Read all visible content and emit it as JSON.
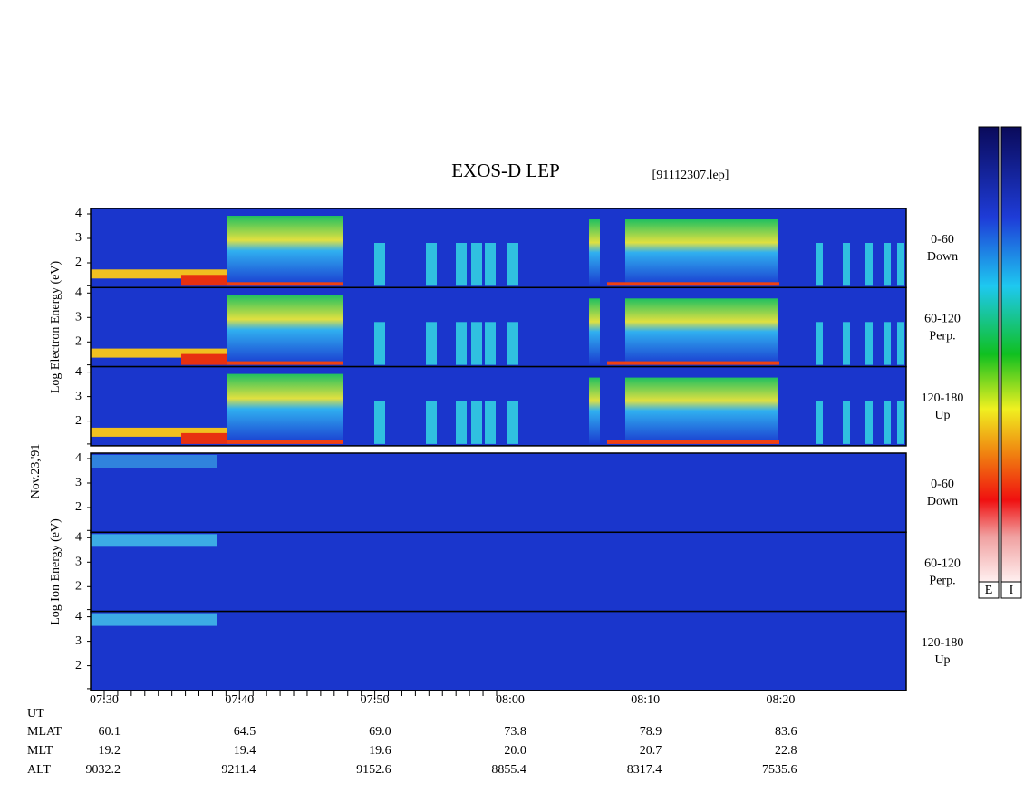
{
  "header": {
    "title": "EXOS-D LEP",
    "file": "[91112307.lep]"
  },
  "date": "Nov.23,'91",
  "groups": [
    {
      "axis_label": "Log Electron Energy (eV)",
      "yticks": [
        "4",
        "3",
        "2"
      ],
      "panels": [
        {
          "label": [
            "0-60",
            "Down"
          ]
        },
        {
          "label": [
            "60-120",
            "Perp."
          ]
        },
        {
          "label": [
            "120-180",
            "Up"
          ]
        }
      ]
    },
    {
      "axis_label": "Log Ion Energy (eV)",
      "yticks": [
        "4",
        "3",
        "2"
      ],
      "panels": [
        {
          "label": [
            "0-60",
            "Down"
          ]
        },
        {
          "label": [
            "60-120",
            "Perp."
          ]
        },
        {
          "label": [
            "120-180",
            "Up"
          ]
        }
      ]
    }
  ],
  "time_axis": {
    "name": "UT",
    "labels": [
      "07:30",
      "07:40",
      "07:50",
      "08:00",
      "08:10",
      "08:20"
    ]
  },
  "ephemeris": [
    {
      "name": "MLAT",
      "values": [
        "60.1",
        "64.5",
        "69.0",
        "73.8",
        "78.9",
        "83.6"
      ]
    },
    {
      "name": "MLT",
      "values": [
        "19.2",
        "19.4",
        "19.6",
        "20.0",
        "20.7",
        "22.8"
      ]
    },
    {
      "name": "ALT",
      "values": [
        "9032.2",
        "9211.4",
        "9152.6",
        "8855.4",
        "8317.4",
        "7535.6"
      ]
    }
  ],
  "colorbars": [
    "E",
    "I"
  ]
}
